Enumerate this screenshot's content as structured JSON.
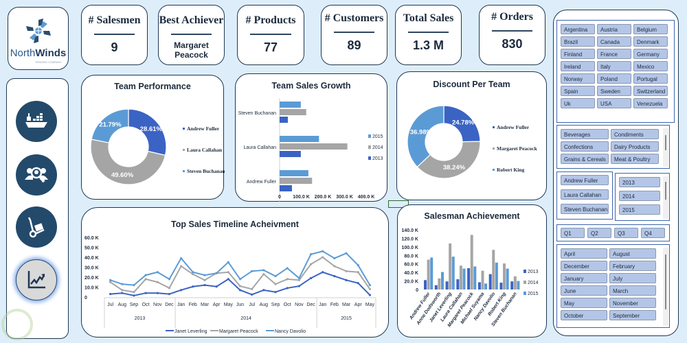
{
  "logo": {
    "name_part1": "North",
    "name_part2": "Winds",
    "tagline": "TRADING COMPANY"
  },
  "kpis": [
    {
      "label": "# Salesmen",
      "value": "9"
    },
    {
      "label": "Best Achiever",
      "value": "Margaret Peacock"
    },
    {
      "label": "# Products",
      "value": "77"
    },
    {
      "label": "# Customers",
      "value": "89"
    },
    {
      "label": "Total Sales",
      "value": "1.3 M"
    },
    {
      "label": "# Orders",
      "value": "830"
    }
  ],
  "nav": [
    {
      "icon": "ship-icon",
      "label": "Shipping"
    },
    {
      "icon": "customer-search-icon",
      "label": "Customers"
    },
    {
      "icon": "hand-truck-icon",
      "label": "Products"
    },
    {
      "icon": "chart-trend-icon",
      "label": "Sales",
      "active": true
    }
  ],
  "slicers": {
    "countries": [
      "Argentina",
      "Austria",
      "Belgium",
      "Brazil",
      "Canada",
      "Denmark",
      "Finland",
      "France",
      "Germany",
      "Ireland",
      "Italy",
      "Mexico",
      "Norway",
      "Poland",
      "Portugal",
      "Spain",
      "Sweden",
      "Switzerland",
      "Uk",
      "USA",
      "Venezuela"
    ],
    "categories": [
      "Beverages",
      "Condiments",
      "Confections",
      "Dairy Products",
      "Grains & Cereals",
      "Meat & Poultry"
    ],
    "managers": [
      "Andrew Fuller",
      "Laura Callahan",
      "Steven Buchanan"
    ],
    "years": [
      "2013",
      "2014",
      "2015"
    ],
    "quarters": [
      "Q1",
      "Q2",
      "Q3",
      "Q4"
    ],
    "months": [
      "April",
      "August",
      "December",
      "February",
      "January",
      "July",
      "June",
      "March",
      "May",
      "November",
      "October",
      "September"
    ]
  },
  "colors": {
    "dark_blue": "#3a63c4",
    "gray": "#a5a5a5",
    "light_blue": "#5b9bd5",
    "navy": "#234a6b"
  },
  "chart_data": [
    {
      "id": "team_performance",
      "type": "pie",
      "title": "Team Performance",
      "labels": [
        "Andrew Fuller",
        "Laura Callahan",
        "Steven Buchanan"
      ],
      "values": [
        28.61,
        49.6,
        21.79
      ],
      "value_labels": [
        "28.61%",
        "49.60%",
        "21.79%"
      ],
      "legend": "right"
    },
    {
      "id": "team_sales_growth",
      "type": "bar",
      "orientation": "horizontal",
      "title": "Team Sales Growth",
      "categories": [
        "Steven Buchanan",
        "Laura Callahan",
        "Andrew Fuller"
      ],
      "series": [
        {
          "name": "2015",
          "values": [
            98,
            182,
            133
          ]
        },
        {
          "name": "2014",
          "values": [
            123,
            313,
            150
          ]
        },
        {
          "name": "2013",
          "values": [
            38,
            98,
            57
          ]
        }
      ],
      "unit": "K",
      "xlim": [
        0,
        400
      ],
      "xticks": [
        "0",
        "100.0 K",
        "200.0 K",
        "300.0 K",
        "400.0 K"
      ],
      "legend": "right"
    },
    {
      "id": "discount_per_team",
      "type": "pie",
      "title": "Discount Per Team",
      "labels": [
        "Andrew Fuller",
        "Margaret Peacock",
        "Robert King"
      ],
      "values": [
        24.78,
        38.24,
        36.98
      ],
      "value_labels": [
        "24.78%",
        "38.24%",
        "36.98%"
      ],
      "legend": "right"
    },
    {
      "id": "top_sales_timeline",
      "type": "line",
      "title": "Top Sales Timeline Acheivment",
      "x": [
        "Jul",
        "Aug",
        "Sep",
        "Oct",
        "Nov",
        "Dec",
        "Jan",
        "Feb",
        "Mar",
        "Apr",
        "May",
        "Jun",
        "Jul",
        "Aug",
        "Sep",
        "Oct",
        "Nov",
        "Dec",
        "Jan",
        "Feb",
        "Mar",
        "Apr",
        "May"
      ],
      "year_groups": [
        {
          "label": "2013",
          "count": 6
        },
        {
          "label": "2014",
          "count": 12
        },
        {
          "label": "2015",
          "count": 5
        }
      ],
      "series": [
        {
          "name": "Janet Leverling",
          "values": [
            3,
            4,
            1.5,
            4,
            4,
            3,
            7,
            10.5,
            12,
            10.5,
            18,
            7,
            2.5,
            7,
            5,
            9,
            11,
            19,
            25,
            21,
            17,
            14,
            2
          ]
        },
        {
          "name": "Margaret Peacock",
          "values": [
            15,
            7,
            5,
            18,
            15,
            9,
            31,
            23,
            17,
            24,
            25,
            11,
            8,
            23,
            13,
            18,
            17,
            33,
            40,
            31,
            26,
            25,
            8
          ]
        },
        {
          "name": "Nancy Davolio",
          "values": [
            17,
            13,
            12,
            22,
            25,
            18,
            39,
            25,
            22,
            24,
            35,
            18,
            26,
            27,
            21,
            29,
            19,
            43,
            46,
            39,
            44,
            32,
            12
          ]
        }
      ],
      "unit": "K",
      "ylim": [
        0,
        60
      ],
      "yticks": [
        "0",
        "10.0 K",
        "20.0 K",
        "30.0 K",
        "40.0 K",
        "50.0 K",
        "60.0 K"
      ],
      "legend": "bottom"
    },
    {
      "id": "salesman_achievement",
      "type": "bar",
      "title": "Salesman Achievement",
      "categories": [
        "Andrew Fuller",
        "Anne Dodsworth",
        "Janet Leverling",
        "Laura Callahan",
        "Margaret Peacock",
        "Michael Suyama",
        "Nancy Davolio",
        "Robert King",
        "Steven Buchanan"
      ],
      "series": [
        {
          "name": "2013",
          "values": [
            22,
            10,
            19,
            24,
            50,
            17,
            36,
            16,
            19
          ]
        },
        {
          "name": "2014",
          "values": [
            70,
            26,
            108,
            56,
            128,
            44,
            93,
            61,
            31
          ]
        },
        {
          "name": "2015",
          "values": [
            75,
            41,
            77,
            49,
            54,
            14,
            63,
            49,
            20
          ]
        }
      ],
      "unit": "K",
      "ylim": [
        0,
        140
      ],
      "yticks": [
        "0",
        "20.0 K",
        "40.0 K",
        "60.0 K",
        "80.0 K",
        "100.0 K",
        "120.0 K",
        "140.0 K"
      ],
      "legend": "right"
    }
  ]
}
